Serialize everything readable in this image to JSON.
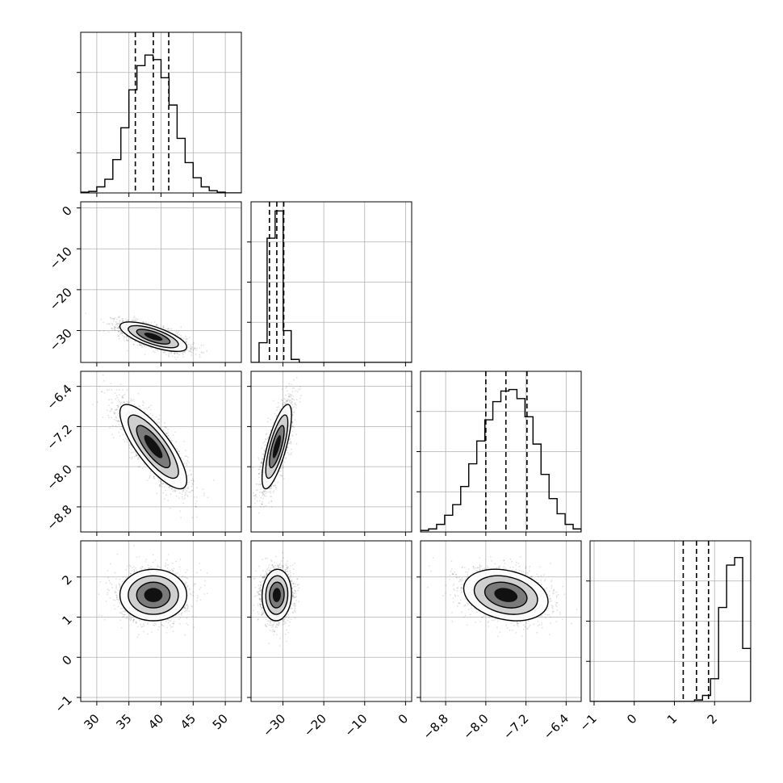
{
  "chart_data": {
    "type": "corner",
    "grid": true,
    "colors": {
      "line": "#000000",
      "grid": "#b0b0b0",
      "density": "#000000"
    },
    "params": [
      {
        "range": [
          27.5,
          52.5
        ],
        "ticks": [
          30,
          35,
          40,
          45,
          50
        ],
        "tick_labels": [
          "30",
          "35",
          "40",
          "45",
          "50"
        ],
        "quantiles": [
          36.0,
          38.8,
          41.2
        ],
        "hist": [
          0.005,
          0.01,
          0.04,
          0.09,
          0.22,
          0.43,
          0.68,
          0.84,
          0.91,
          0.88,
          0.76,
          0.58,
          0.36,
          0.2,
          0.1,
          0.04,
          0.015,
          0.005,
          0.0,
          0.0
        ]
      },
      {
        "range": [
          -37.8,
          1.5
        ],
        "ticks": [
          -30,
          -20,
          -10,
          0
        ],
        "tick_labels": [
          "−30",
          "−20",
          "−10",
          "0"
        ],
        "quantiles": [
          -33.3,
          -31.5,
          -29.8
        ],
        "hist": [
          0.0,
          0.13,
          0.82,
          1.0,
          0.21,
          0.02,
          0.0,
          0.0,
          0.0,
          0.0,
          0.0,
          0.0,
          0.0,
          0.0,
          0.0,
          0.0,
          0.0,
          0.0,
          0.0,
          0.0
        ]
      },
      {
        "range": [
          -9.3,
          -6.1
        ],
        "ticks": [
          -8.8,
          -8.0,
          -7.2,
          -6.4
        ],
        "tick_labels": [
          "−8.8",
          "−8.0",
          "−7.2",
          "−6.4"
        ],
        "quantiles": [
          -8.0,
          -7.6,
          -7.18
        ],
        "hist": [
          0.01,
          0.02,
          0.05,
          0.11,
          0.18,
          0.3,
          0.45,
          0.6,
          0.74,
          0.86,
          0.93,
          0.94,
          0.88,
          0.76,
          0.58,
          0.38,
          0.22,
          0.12,
          0.05,
          0.02
        ]
      },
      {
        "range": [
          -1.1,
          2.9
        ],
        "ticks": [
          -1,
          0,
          1,
          2
        ],
        "tick_labels": [
          "−1",
          "0",
          "1",
          "2"
        ],
        "quantiles": [
          1.22,
          1.55,
          1.85
        ],
        "hist": [
          0.0,
          0.0,
          0.0,
          0.0,
          0.0,
          0.0,
          0.0,
          0.0,
          0.0,
          0.0,
          0.0,
          0.0,
          0.0,
          0.01,
          0.04,
          0.15,
          0.62,
          0.9,
          0.95,
          0.35
        ]
      }
    ],
    "correlations": [
      {
        "i": 1,
        "j": 0,
        "rho": -0.7
      },
      {
        "i": 2,
        "j": 0,
        "rho": -0.8
      },
      {
        "i": 2,
        "j": 1,
        "rho": 0.75
      },
      {
        "i": 3,
        "j": 0,
        "rho": 0.0
      },
      {
        "i": 3,
        "j": 1,
        "rho": 0.05
      },
      {
        "i": 3,
        "j": 2,
        "rho": -0.25
      }
    ],
    "means": [
      38.8,
      -31.5,
      -7.6,
      1.55
    ],
    "sigmas": [
      2.6,
      1.8,
      0.42,
      0.32
    ]
  }
}
